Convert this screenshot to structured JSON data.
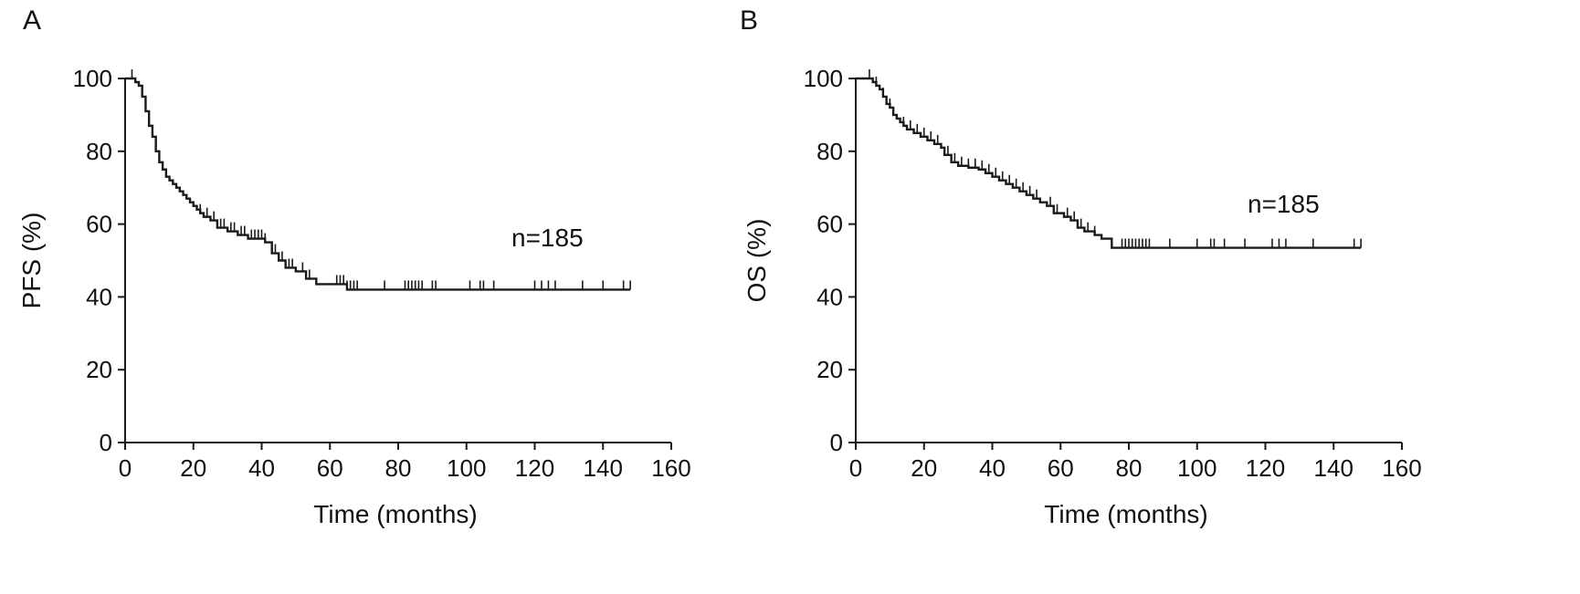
{
  "chart_data": [
    {
      "panel": "A",
      "type": "line",
      "step": true,
      "xlabel": "Time (months)",
      "ylabel": "PFS (%)",
      "annotation": "n=185",
      "xlim": [
        0,
        160
      ],
      "ylim": [
        0,
        100
      ],
      "xticks": [
        0,
        20,
        40,
        60,
        80,
        100,
        120,
        140,
        160
      ],
      "yticks": [
        0,
        20,
        40,
        60,
        80,
        100
      ],
      "grid": false,
      "color": "#1a1a1a",
      "x": [
        0,
        2,
        3,
        4,
        5,
        6,
        7,
        8,
        9,
        10,
        11,
        12,
        13,
        14,
        15,
        16,
        17,
        18,
        19,
        20,
        21,
        22,
        23,
        25,
        27,
        30,
        33,
        36,
        41,
        43,
        45,
        47,
        50,
        53,
        56,
        65,
        148
      ],
      "y": [
        100,
        100,
        99,
        98,
        95,
        91,
        87,
        84,
        80,
        77,
        75,
        73,
        72,
        71,
        70,
        69,
        68,
        67,
        66,
        65,
        64,
        63,
        62,
        61,
        59,
        58,
        57,
        56,
        55,
        52,
        50,
        48,
        47,
        45,
        43.5,
        42,
        42
      ],
      "censor_x": [
        2,
        22,
        24,
        26,
        28,
        29,
        31,
        32,
        34,
        35,
        37,
        38,
        39,
        40,
        41,
        44,
        46,
        48,
        49,
        52,
        54,
        62,
        63,
        64,
        65,
        66,
        67,
        68,
        76,
        82,
        83,
        84,
        85,
        86,
        87,
        90,
        91,
        101,
        104,
        105,
        108,
        120,
        122,
        124,
        126,
        134,
        140,
        146,
        148
      ]
    },
    {
      "panel": "B",
      "type": "line",
      "step": true,
      "xlabel": "Time (months)",
      "ylabel": "OS (%)",
      "annotation": "n=185",
      "xlim": [
        0,
        160
      ],
      "ylim": [
        0,
        100
      ],
      "xticks": [
        0,
        20,
        40,
        60,
        80,
        100,
        120,
        140,
        160
      ],
      "yticks": [
        0,
        20,
        40,
        60,
        80,
        100
      ],
      "grid": false,
      "color": "#1a1a1a",
      "x": [
        0,
        4,
        5,
        6,
        7,
        8,
        9,
        10,
        11,
        12,
        13,
        14,
        15,
        17,
        19,
        21,
        23,
        25,
        26,
        28,
        30,
        33,
        36,
        38,
        40,
        42,
        44,
        46,
        48,
        50,
        52,
        54,
        56,
        58,
        61,
        63,
        65,
        67,
        70,
        72,
        75,
        148
      ],
      "y": [
        100,
        100,
        99,
        98,
        97,
        95,
        93,
        92,
        90,
        89,
        88,
        87,
        86,
        85,
        84,
        83,
        82,
        81,
        79,
        77,
        76,
        75.5,
        75,
        74,
        73,
        72,
        71,
        70,
        69,
        68,
        67,
        66,
        65,
        63,
        62,
        61,
        59,
        58,
        57,
        56,
        53.5,
        53.5
      ],
      "censor_x": [
        4,
        6,
        8,
        10,
        14,
        16,
        18,
        20,
        22,
        24,
        27,
        29,
        31,
        33,
        35,
        37,
        39,
        41,
        43,
        45,
        47,
        49,
        51,
        53,
        57,
        59,
        62,
        64,
        66,
        68,
        70,
        78,
        79,
        80,
        81,
        82,
        83,
        84,
        85,
        86,
        92,
        100,
        104,
        105,
        108,
        114,
        122,
        124,
        126,
        134,
        146,
        148
      ]
    }
  ]
}
